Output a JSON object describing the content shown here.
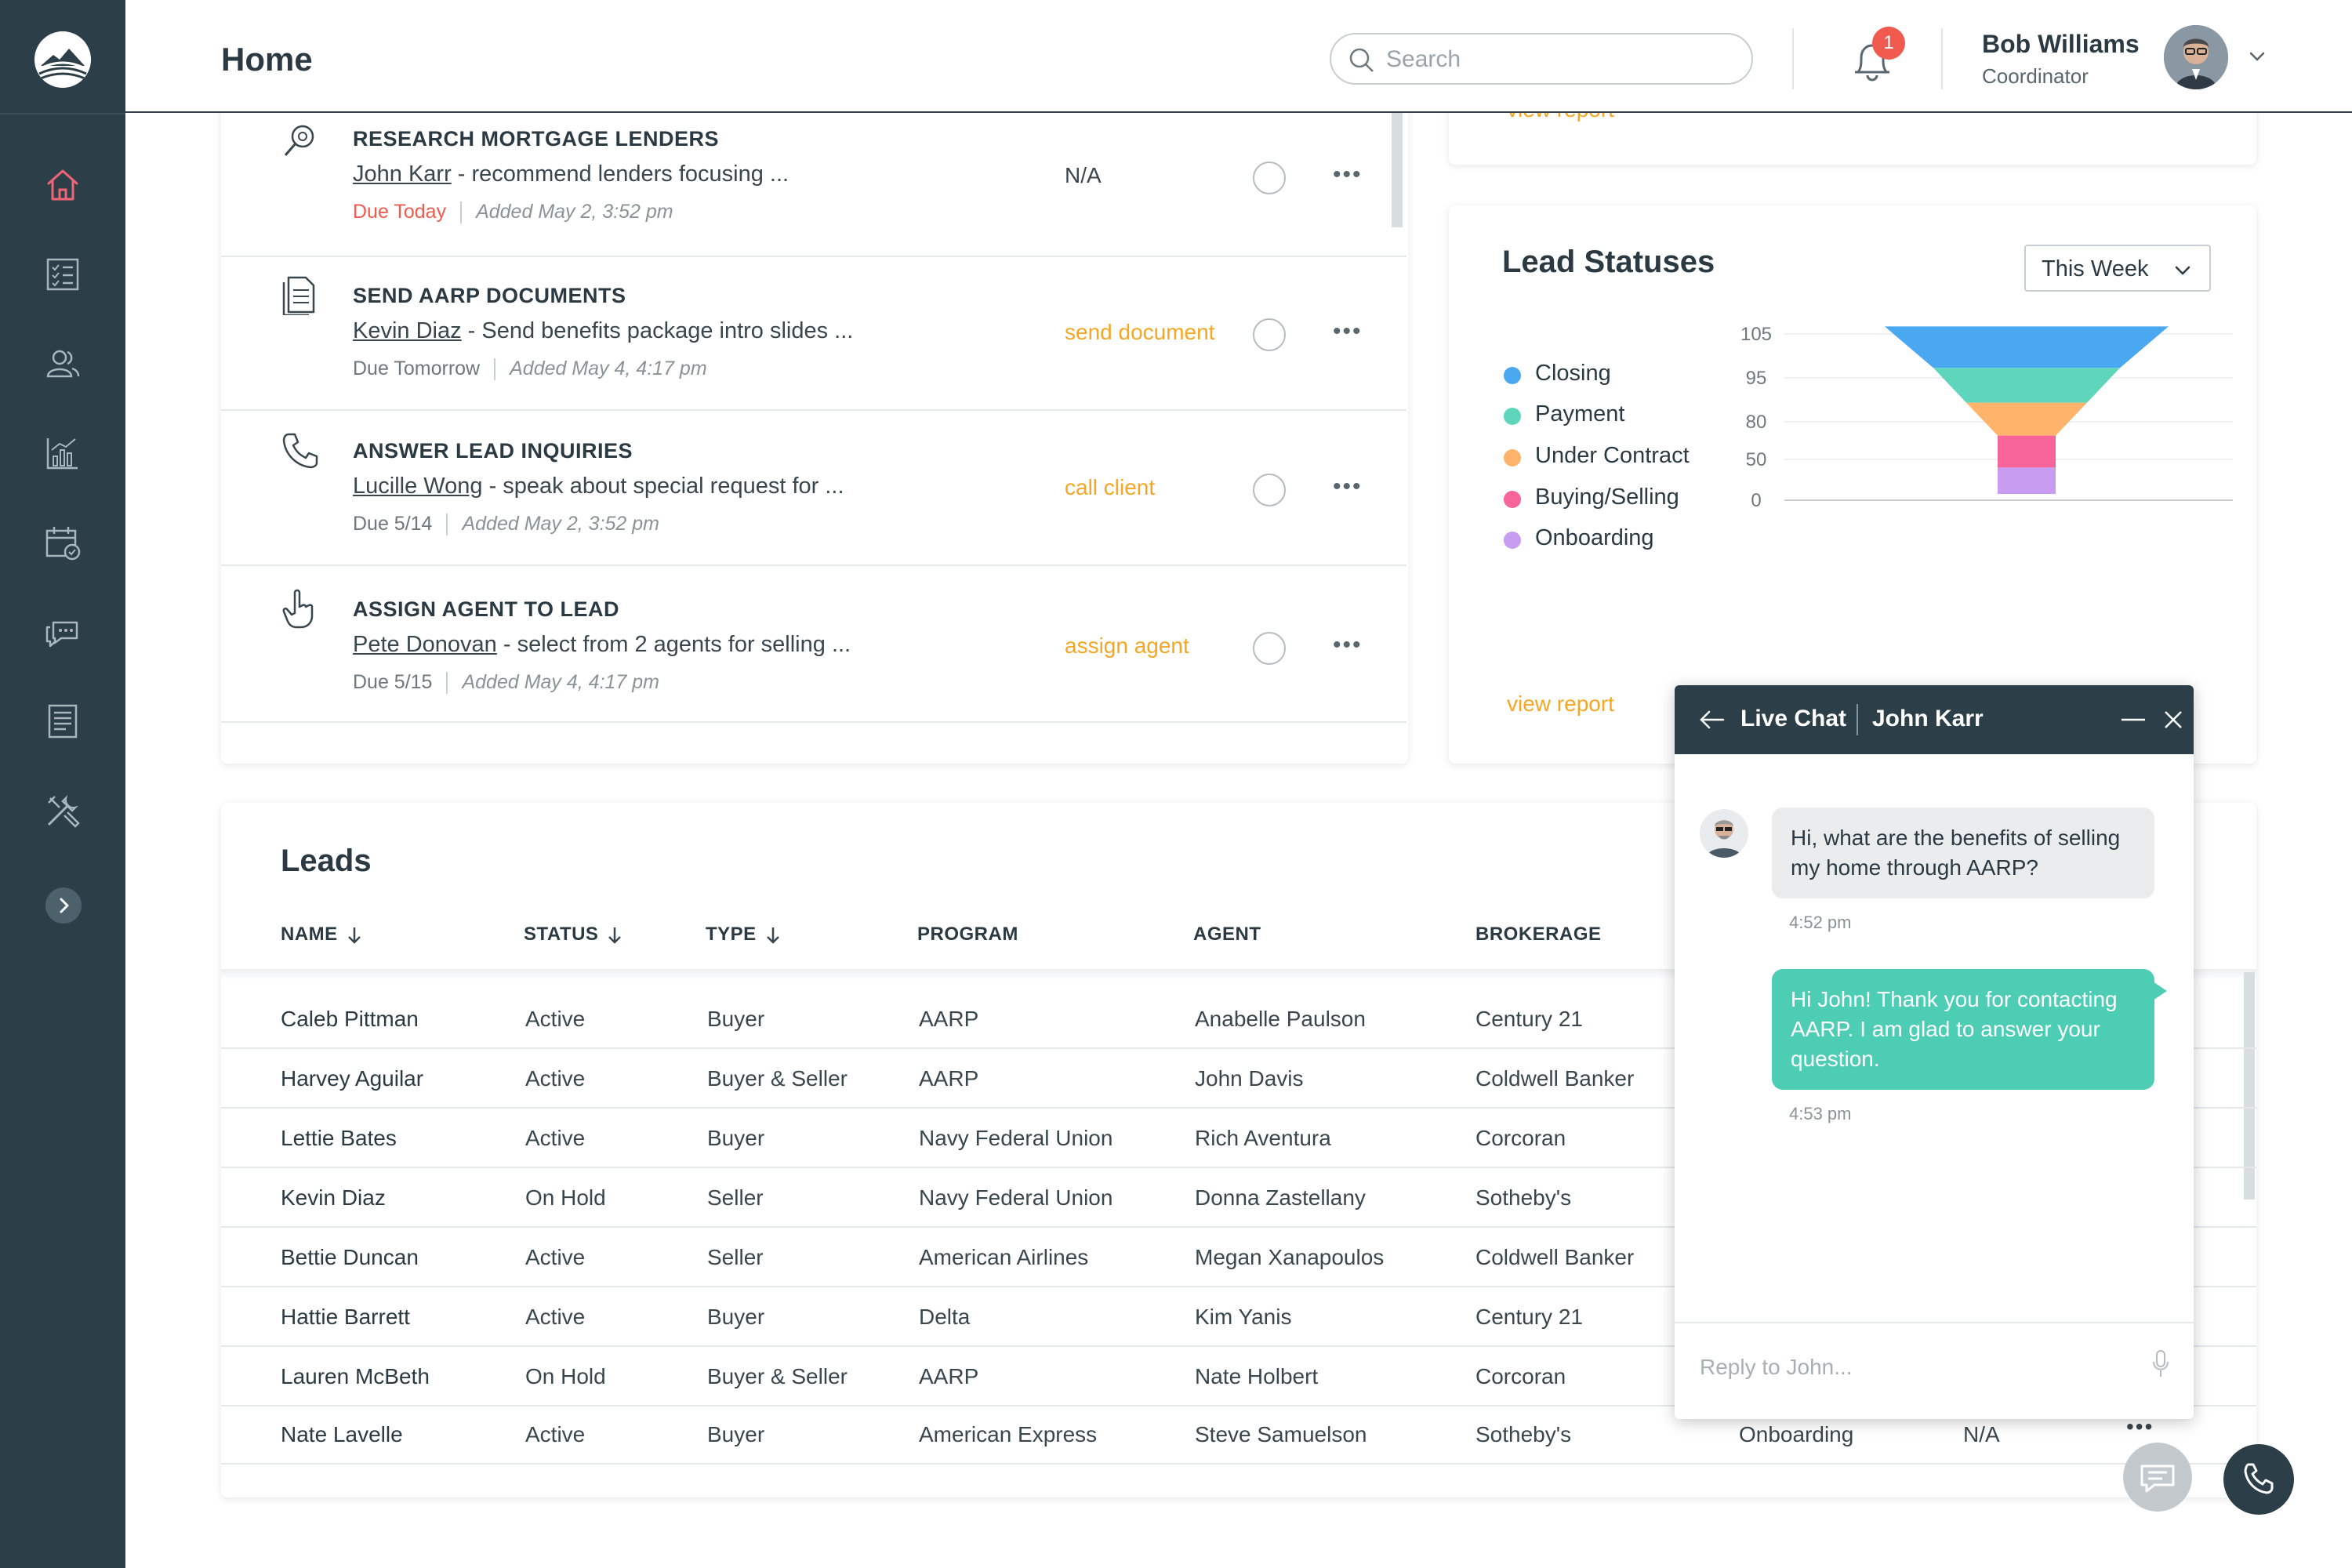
{
  "header": {
    "title": "Home",
    "search_placeholder": "Search",
    "notification_count": "1",
    "user_name": "Bob Williams",
    "user_role": "Coordinator"
  },
  "sidebar": {
    "items": [
      "home-icon",
      "checklist-icon",
      "people-icon",
      "bar-chart-icon",
      "calendar-icon",
      "chat-icon",
      "document-icon",
      "tools-icon"
    ]
  },
  "tasks": [
    {
      "icon": "search-document-icon",
      "title": "RESEARCH MORTGAGE LENDERS",
      "person": "John Karr",
      "desc": " - recommend lenders focusing ...",
      "due": "Due Today",
      "added": "Added May 2, 3:52 pm",
      "action": "N/A"
    },
    {
      "icon": "document-icon",
      "title": "SEND AARP DOCUMENTS",
      "person": "Kevin Diaz",
      "desc": " - Send benefits package intro slides ...",
      "due": "Due Tomorrow",
      "added": "Added May 4, 4:17 pm",
      "action": "send document"
    },
    {
      "icon": "phone-icon",
      "title": "ANSWER LEAD INQUIRIES",
      "person": "Lucille Wong",
      "desc": " - speak about special request for ...",
      "due": "Due 5/14",
      "added": "Added May 2, 3:52 pm",
      "action": "call client"
    },
    {
      "icon": "hand-pointer-icon",
      "title": "ASSIGN AGENT TO LEAD",
      "person": "Pete Donovan",
      "desc": " - select from 2 agents for selling ...",
      "due": "Due 5/15",
      "added": "Added May 4, 4:17 pm",
      "action": "assign agent"
    }
  ],
  "top_card_link": "view report",
  "lead_statuses": {
    "title": "Lead Statuses",
    "period": "This Week",
    "view_report": "view report",
    "legend": [
      {
        "label": "Closing",
        "color": "#4aa8f0"
      },
      {
        "label": "Payment",
        "color": "#5fd6bb"
      },
      {
        "label": "Under Contract",
        "color": "#ffb36b"
      },
      {
        "label": "Buying/Selling",
        "color": "#f6649a"
      },
      {
        "label": "Onboarding",
        "color": "#c89cf0"
      }
    ]
  },
  "chart_data": {
    "type": "funnel",
    "title": "Lead Statuses",
    "y_ticks": [
      "105",
      "95",
      "80",
      "50",
      "0"
    ],
    "stages": [
      {
        "name": "Closing",
        "color": "#4aa8f0"
      },
      {
        "name": "Payment",
        "color": "#5fd6bb"
      },
      {
        "name": "Under Contract",
        "color": "#ffb36b"
      },
      {
        "name": "Buying/Selling",
        "color": "#f6649a"
      },
      {
        "name": "Onboarding",
        "color": "#c89cf0"
      }
    ]
  },
  "leads": {
    "title": "Leads",
    "columns": [
      "NAME",
      "STATUS",
      "TYPE",
      "PROGRAM",
      "AGENT",
      "BROKERAGE"
    ],
    "rows": [
      {
        "name": "Caleb Pittman",
        "status": "Active",
        "type": "Buyer",
        "program": "AARP",
        "agent": "Anabelle Paulson",
        "brokerage": "Century 21"
      },
      {
        "name": "Harvey Aguilar",
        "status": "Active",
        "type": "Buyer & Seller",
        "program": "AARP",
        "agent": "John Davis",
        "brokerage": "Coldwell Banker"
      },
      {
        "name": "Lettie Bates",
        "status": "Active",
        "type": "Buyer",
        "program": "Navy Federal Union",
        "agent": "Rich Aventura",
        "brokerage": "Corcoran"
      },
      {
        "name": "Kevin Diaz",
        "status": "On Hold",
        "type": "Seller",
        "program": "Navy Federal Union",
        "agent": "Donna Zastellany",
        "brokerage": "Sotheby's"
      },
      {
        "name": "Bettie Duncan",
        "status": "Active",
        "type": "Seller",
        "program": "American Airlines",
        "agent": "Megan Xanapoulos",
        "brokerage": "Coldwell Banker"
      },
      {
        "name": "Hattie Barrett",
        "status": "Active",
        "type": "Buyer",
        "program": "Delta",
        "agent": "Kim Yanis",
        "brokerage": "Century 21"
      },
      {
        "name": "Lauren McBeth",
        "status": "On Hold",
        "type": "Buyer & Seller",
        "program": "AARP",
        "agent": "Nate Holbert",
        "brokerage": "Corcoran"
      },
      {
        "name": "Nate Lavelle",
        "status": "Active",
        "type": "Buyer",
        "program": "American Express",
        "agent": "Steve Samuelson",
        "brokerage": "Sotheby's",
        "extra_status": "Onboarding",
        "extra_value": "N/A"
      }
    ]
  },
  "chat": {
    "title": "Live Chat",
    "contact": "John Karr",
    "messages": [
      {
        "from": "in",
        "text": "Hi, what are the benefits of selling my home through AARP?",
        "time": "4:52 pm"
      },
      {
        "from": "out",
        "text": "Hi John! Thank you for contacting AARP. I am glad to answer your question.",
        "time": "4:53 pm"
      }
    ],
    "reply_placeholder": "Reply to John..."
  }
}
